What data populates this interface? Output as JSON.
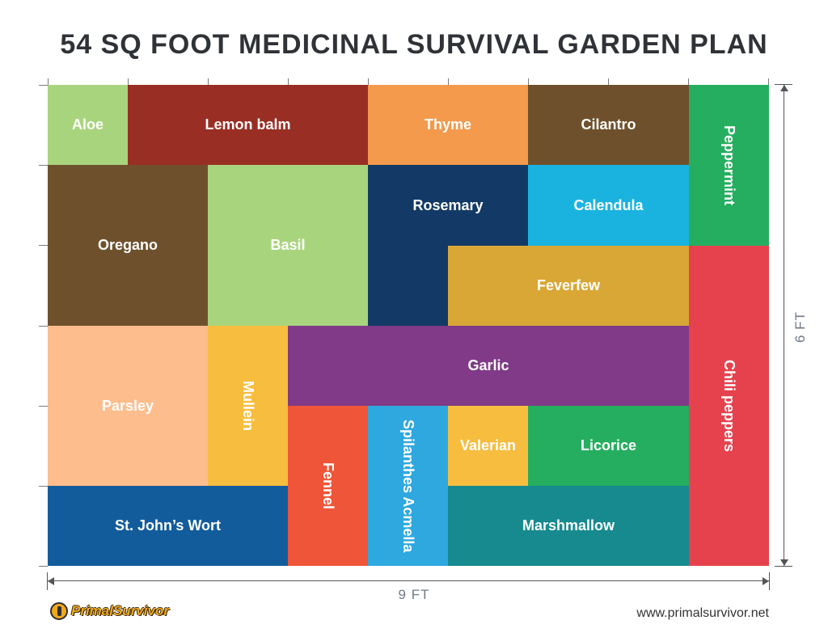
{
  "title": "54 SQ FOOT MEDICINAL SURVIVAL GARDEN PLAN",
  "dimensions": {
    "width_label": "9 FT",
    "height_label": "6 FT"
  },
  "beds": [
    {
      "key": "aloe",
      "label": "Aloe",
      "color": "#a9d47e"
    },
    {
      "key": "lemon-balm",
      "label": "Lemon balm",
      "color": "#992e24"
    },
    {
      "key": "thyme",
      "label": "Thyme",
      "color": "#f39a4d"
    },
    {
      "key": "cilantro",
      "label": "Cilantro",
      "color": "#6e512c"
    },
    {
      "key": "peppermint",
      "label": "Peppermint",
      "color": "#25ae5f"
    },
    {
      "key": "oregano",
      "label": "Oregano",
      "color": "#6e512c"
    },
    {
      "key": "basil",
      "label": "Basil",
      "color": "#a9d47e"
    },
    {
      "key": "rosemary",
      "label": "Rosemary",
      "color": "#133a66"
    },
    {
      "key": "rosemary-extension",
      "label": "",
      "color": "#133a66"
    },
    {
      "key": "calendula",
      "label": "Calendula",
      "color": "#1ab3e0"
    },
    {
      "key": "feverfew",
      "label": "Feverfew",
      "color": "#d9a735"
    },
    {
      "key": "chili-peppers",
      "label": "Chili peppers",
      "color": "#e5424d"
    },
    {
      "key": "parsley",
      "label": "Parsley",
      "color": "#fdbd8c"
    },
    {
      "key": "mullein",
      "label": "Mullein",
      "color": "#f7bd3f"
    },
    {
      "key": "garlic",
      "label": "Garlic",
      "color": "#803a87"
    },
    {
      "key": "fennel",
      "label": "Fennel",
      "color": "#ef5538"
    },
    {
      "key": "spilanthes-acmella",
      "label": "Spilanthes Acmella",
      "color": "#2ea8df"
    },
    {
      "key": "valerian",
      "label": "Valerian",
      "color": "#f7bd3f"
    },
    {
      "key": "licorice",
      "label": "Licorice",
      "color": "#25ae5f"
    },
    {
      "key": "st-johns-wort",
      "label": "St. John’s Wort",
      "color": "#135c9c"
    },
    {
      "key": "marshmallow",
      "label": "Marshmallow",
      "color": "#168a8f"
    }
  ],
  "brand": {
    "logo_text": "PrimalSurvivor",
    "logo_icon": "survivor-figure-icon",
    "url": "www.primalsurvivor.net"
  }
}
